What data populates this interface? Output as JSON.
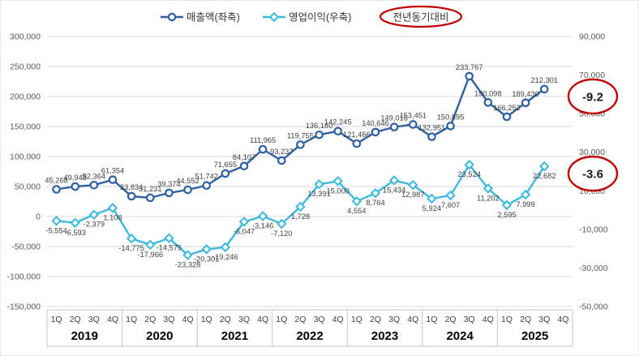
{
  "legend": {
    "yoy_label": "전년동기대비"
  },
  "colors": {
    "revenue": "#2e5fa3",
    "operating": "#3db9dd",
    "grid": "#d9d9d9",
    "axis_text": "#595959",
    "label_text": "#404040",
    "red": "#c00000",
    "separator": "#c6c6c6"
  },
  "chart_data": {
    "type": "line",
    "title": "",
    "years": [
      "2019",
      "2020",
      "2021",
      "2022",
      "2023",
      "2024",
      "2025"
    ],
    "quarters": [
      "1Q",
      "2Q",
      "3Q",
      "4Q"
    ],
    "left_axis": {
      "min": -150000,
      "max": 300000,
      "step": 50000
    },
    "right_axis": {
      "min": -50000,
      "max": 90000,
      "step": 20000
    },
    "legend_position": "top",
    "grid": true,
    "series": [
      {
        "name": "매출액(좌축)",
        "axis": "left",
        "marker": "circle",
        "color": "#2e5fa3",
        "values": [
          45268,
          49948,
          52364,
          61354,
          33834,
          31231,
          39374,
          44552,
          51742,
          71655,
          84107,
          111965,
          93237,
          119755,
          136160,
          142245,
          121466,
          140646,
          149016,
          153451,
          132951,
          150895,
          233767,
          190098,
          166252,
          189430,
          212301
        ]
      },
      {
        "name": "영업이익(우축)",
        "axis": "right",
        "marker": "diamond",
        "color": "#3db9dd",
        "values": [
          -5554,
          -6593,
          -2379,
          1106,
          -14775,
          -17966,
          -14575,
          -23328,
          -20301,
          -19246,
          -6047,
          -3146,
          -7120,
          1728,
          13391,
          15000,
          4554,
          8764,
          15434,
          12987,
          5924,
          7607,
          23524,
          11202,
          2595,
          7999,
          22682
        ]
      }
    ],
    "yoy_labels": {
      "revenue": "-9.2",
      "operating": "-3.6"
    }
  }
}
